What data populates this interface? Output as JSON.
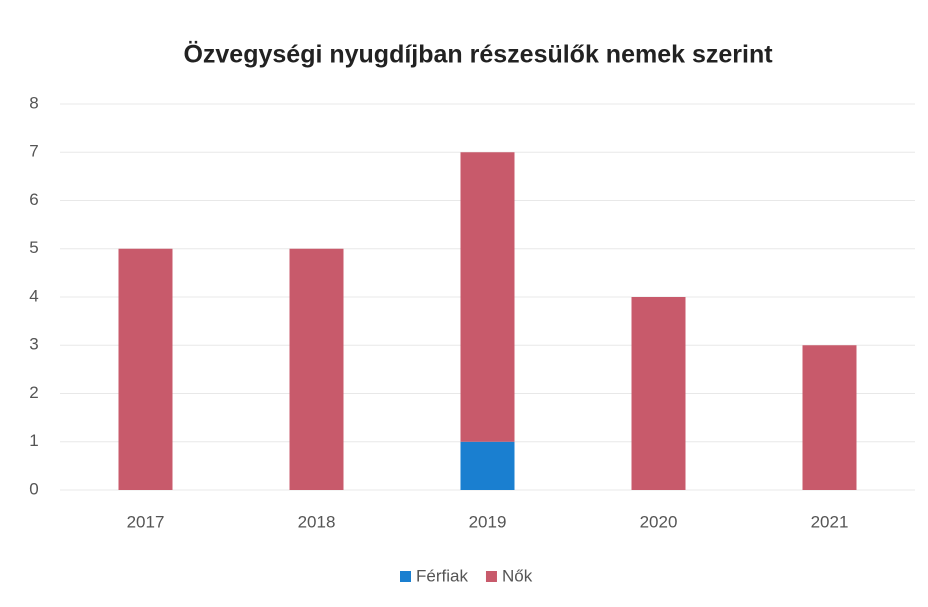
{
  "chart_data": {
    "type": "stacked_bar",
    "title": "Özvegységi nyugdíjban részesülők nemek szerint",
    "categories": [
      "2017",
      "2018",
      "2019",
      "2020",
      "2021"
    ],
    "series": [
      {
        "name": "Férfiak",
        "color": "#1a7fd0",
        "values": [
          0,
          0,
          1,
          0,
          0
        ]
      },
      {
        "name": "Nők",
        "color": "#c85a6b",
        "values": [
          5,
          5,
          6,
          4,
          3
        ]
      }
    ],
    "ylim": [
      0,
      8
    ],
    "yticks": [
      0,
      1,
      2,
      3,
      4,
      5,
      6,
      7,
      8
    ],
    "grid": true,
    "legend": "bottom"
  }
}
